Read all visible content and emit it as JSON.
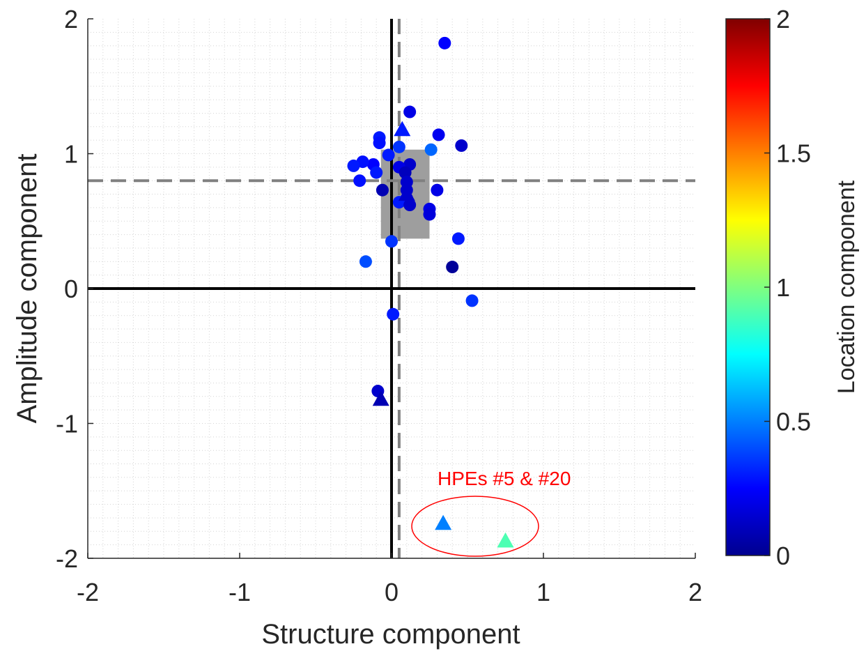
{
  "chart_data": {
    "type": "scatter",
    "xlabel": "Structure component",
    "ylabel": "Amplitude component",
    "colorbar_label": "Location component",
    "xlim": [
      -2,
      2
    ],
    "ylim": [
      -2,
      2
    ],
    "clim": [
      0,
      2
    ],
    "x_ticks": [
      "-2",
      "-1",
      "0",
      "1",
      "2"
    ],
    "y_ticks": [
      "-2",
      "-1",
      "0",
      "1",
      "2"
    ],
    "colorbar_ticks": [
      "0",
      "0.5",
      "1",
      "1.5",
      "2"
    ],
    "grid": "minor dotted",
    "colormap": "jet",
    "reference_lines": {
      "solid_x": 0,
      "solid_y": 0,
      "dashed_x": 0.05,
      "dashed_y": 0.8
    },
    "shaded_box": {
      "x": [
        -0.07,
        0.25
      ],
      "y": [
        0.37,
        1.03
      ]
    },
    "annotation": {
      "text": "HPEs #5 & #20",
      "color": "#ff0000"
    },
    "circles": [
      {
        "x": 0.35,
        "y": 1.82,
        "c": 0.25
      },
      {
        "x": 0.12,
        "y": 1.31,
        "c": 0.2
      },
      {
        "x": 0.31,
        "y": 1.14,
        "c": 0.22
      },
      {
        "x": -0.08,
        "y": 1.12,
        "c": 0.3
      },
      {
        "x": -0.08,
        "y": 1.08,
        "c": 0.28
      },
      {
        "x": 0.05,
        "y": 1.05,
        "c": 0.35
      },
      {
        "x": 0.46,
        "y": 1.06,
        "c": 0.15
      },
      {
        "x": 0.26,
        "y": 1.03,
        "c": 0.45
      },
      {
        "x": -0.02,
        "y": 0.99,
        "c": 0.3
      },
      {
        "x": -0.12,
        "y": 0.92,
        "c": 0.25
      },
      {
        "x": -0.19,
        "y": 0.94,
        "c": 0.28
      },
      {
        "x": -0.25,
        "y": 0.91,
        "c": 0.3
      },
      {
        "x": -0.1,
        "y": 0.86,
        "c": 0.3
      },
      {
        "x": -0.21,
        "y": 0.8,
        "c": 0.28
      },
      {
        "x": 0.12,
        "y": 0.92,
        "c": 0.15
      },
      {
        "x": 0.05,
        "y": 0.9,
        "c": 0.2
      },
      {
        "x": 0.09,
        "y": 0.86,
        "c": 0.12
      },
      {
        "x": 0.1,
        "y": 0.79,
        "c": 0.15
      },
      {
        "x": -0.06,
        "y": 0.73,
        "c": 0.1
      },
      {
        "x": 0.1,
        "y": 0.73,
        "c": 0.15
      },
      {
        "x": 0.3,
        "y": 0.73,
        "c": 0.2
      },
      {
        "x": 0.1,
        "y": 0.67,
        "c": 0.15
      },
      {
        "x": 0.05,
        "y": 0.64,
        "c": 0.3
      },
      {
        "x": 0.12,
        "y": 0.62,
        "c": 0.15
      },
      {
        "x": 0.25,
        "y": 0.59,
        "c": 0.2
      },
      {
        "x": 0.25,
        "y": 0.55,
        "c": 0.18
      },
      {
        "x": 0.44,
        "y": 0.37,
        "c": 0.3
      },
      {
        "x": 0.0,
        "y": 0.35,
        "c": 0.35
      },
      {
        "x": -0.17,
        "y": 0.2,
        "c": 0.4
      },
      {
        "x": 0.4,
        "y": 0.16,
        "c": 0.05
      },
      {
        "x": 0.53,
        "y": -0.09,
        "c": 0.35
      },
      {
        "x": 0.01,
        "y": -0.19,
        "c": 0.3
      },
      {
        "x": -0.09,
        "y": -0.76,
        "c": 0.15
      }
    ],
    "triangles": [
      {
        "x": 0.07,
        "y": 1.18,
        "c": 0.3
      },
      {
        "x": 0.1,
        "y": 0.7,
        "c": 0.15
      },
      {
        "x": -0.07,
        "y": -0.82,
        "c": 0.1
      },
      {
        "x": 0.34,
        "y": -1.74,
        "c": 0.5
      },
      {
        "x": 0.75,
        "y": -1.87,
        "c": 0.9
      }
    ]
  }
}
